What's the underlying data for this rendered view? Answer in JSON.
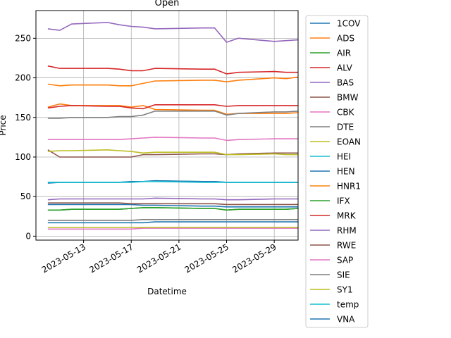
{
  "chart_data": {
    "type": "line",
    "title": "Open",
    "xlabel": "Datetime",
    "ylabel": "Price",
    "x_range": [
      "2023-05-09",
      "2023-05-31"
    ],
    "y_range": [
      -5,
      285
    ],
    "x_ticks": [
      "2023-05-13",
      "2023-05-17",
      "2023-05-21",
      "2023-05-25",
      "2023-05-29"
    ],
    "y_ticks": [
      0,
      50,
      100,
      150,
      200,
      250
    ],
    "grid": true,
    "legend_position": "right-outside",
    "x": [
      "2023-05-10",
      "2023-05-11",
      "2023-05-12",
      "2023-05-15",
      "2023-05-16",
      "2023-05-17",
      "2023-05-18",
      "2023-05-19",
      "2023-05-23",
      "2023-05-24",
      "2023-05-25",
      "2023-05-26",
      "2023-05-29",
      "2023-05-30",
      "2023-05-31"
    ],
    "series": [
      {
        "name": "1COV",
        "color": "#1f77b4",
        "values": [
          40,
          40,
          40,
          40,
          40,
          40,
          39,
          39,
          38,
          38,
          37,
          37,
          37,
          37,
          37
        ]
      },
      {
        "name": "ADS",
        "color": "#ff7f0e",
        "values": [
          192,
          190,
          191,
          191,
          190,
          190,
          193,
          196,
          197,
          197,
          195,
          197,
          200,
          199,
          201
        ]
      },
      {
        "name": "AIR",
        "color": "#2ca02c",
        "values": [
          33,
          33,
          34,
          34,
          34,
          35,
          36,
          36,
          35,
          35,
          33,
          34,
          34,
          34,
          35
        ]
      },
      {
        "name": "ALV",
        "color": "#d62728",
        "values": [
          215,
          212,
          212,
          212,
          211,
          209,
          209,
          212,
          211,
          211,
          205,
          207,
          208,
          207,
          207
        ]
      },
      {
        "name": "BAS",
        "color": "#9467bd",
        "values": [
          46,
          47,
          47,
          47,
          47,
          47,
          47,
          48,
          47,
          47,
          46,
          46,
          47,
          47,
          47
        ]
      },
      {
        "name": "BMW",
        "color": "#8c564b",
        "values": [
          109,
          100,
          100,
          100,
          100,
          100,
          103,
          103,
          104,
          104,
          103,
          104,
          105,
          105,
          105
        ]
      },
      {
        "name": "CBK",
        "color": "#e377c2",
        "values": [
          9,
          9,
          9,
          9,
          9,
          9,
          10,
          10,
          10,
          10,
          10,
          10,
          10,
          10,
          10
        ]
      },
      {
        "name": "DTE",
        "color": "#7f7f7f",
        "values": [
          20,
          20,
          20,
          20,
          20,
          20,
          21,
          21,
          21,
          21,
          21,
          21,
          21,
          21,
          21
        ]
      },
      {
        "name": "EOAN",
        "color": "#bcbd22",
        "values": [
          11,
          11,
          11,
          11,
          11,
          11,
          11,
          11,
          11,
          11,
          11,
          11,
          11,
          11,
          11
        ]
      },
      {
        "name": "HEI",
        "color": "#17becf",
        "values": [
          68,
          68,
          68,
          68,
          68,
          69,
          69,
          70,
          69,
          69,
          68,
          68,
          68,
          68,
          68
        ]
      },
      {
        "name": "HEN",
        "color": "#1f77b4",
        "values": [
          67,
          68,
          68,
          68,
          68,
          69,
          69,
          70,
          69,
          69,
          68,
          68,
          68,
          68,
          68
        ]
      },
      {
        "name": "HNR1",
        "color": "#ff7f0e",
        "values": [
          163,
          167,
          165,
          165,
          165,
          163,
          165,
          160,
          159,
          159,
          154,
          155,
          155,
          155,
          156
        ]
      },
      {
        "name": "IFX",
        "color": "#2ca02c",
        "values": [
          33,
          33,
          34,
          34,
          34,
          35,
          36,
          36,
          35,
          35,
          33,
          34,
          34,
          34,
          35
        ]
      },
      {
        "name": "MRK",
        "color": "#d62728",
        "values": [
          162,
          164,
          165,
          164,
          164,
          162,
          161,
          166,
          166,
          166,
          164,
          165,
          165,
          165,
          165
        ]
      },
      {
        "name": "RHM",
        "color": "#9467bd",
        "values": [
          262,
          260,
          268,
          270,
          267,
          265,
          264,
          262,
          263,
          263,
          245,
          250,
          246,
          247,
          248
        ]
      },
      {
        "name": "RWE",
        "color": "#8c564b",
        "values": [
          42,
          42,
          42,
          42,
          42,
          41,
          41,
          41,
          41,
          41,
          40,
          40,
          40,
          40,
          40
        ]
      },
      {
        "name": "SAP",
        "color": "#e377c2",
        "values": [
          122,
          122,
          122,
          122,
          122,
          123,
          124,
          125,
          124,
          124,
          121,
          122,
          123,
          123,
          123
        ]
      },
      {
        "name": "SIE",
        "color": "#7f7f7f",
        "values": [
          149,
          149,
          150,
          150,
          151,
          151,
          153,
          158,
          158,
          158,
          153,
          155,
          157,
          157,
          158
        ]
      },
      {
        "name": "SY1",
        "color": "#bcbd22",
        "values": [
          107,
          108,
          108,
          109,
          108,
          107,
          105,
          106,
          106,
          106,
          103,
          103,
          104,
          103,
          103
        ]
      },
      {
        "name": "temp",
        "color": "#17becf",
        "values": [
          68,
          68,
          68,
          68,
          68,
          68,
          69,
          69,
          68,
          68,
          68,
          68,
          68,
          68,
          68
        ]
      },
      {
        "name": "VNA",
        "color": "#1f77b4",
        "values": [
          17,
          17,
          17,
          17,
          17,
          17,
          17,
          18,
          18,
          18,
          18,
          18,
          18,
          18,
          18
        ]
      }
    ]
  }
}
